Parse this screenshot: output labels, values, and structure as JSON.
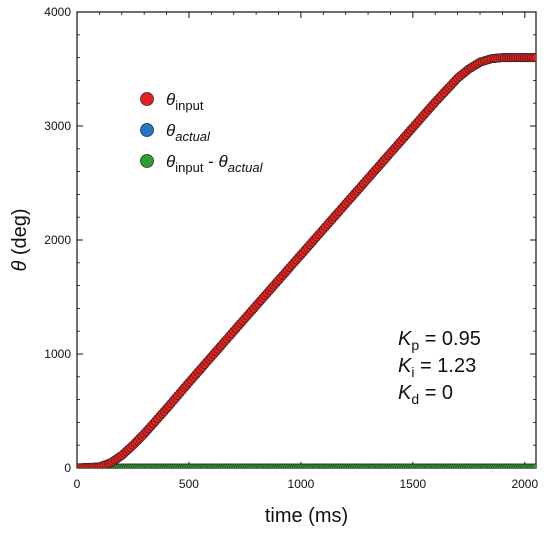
{
  "chart_data": {
    "type": "scatter",
    "title": "",
    "xlabel": "time (ms)",
    "ylabel_symbol": "θ",
    "ylabel_rest": " (deg)",
    "xlim": [
      0,
      2050
    ],
    "ylim": [
      0,
      4000
    ],
    "xticks": [
      "0",
      "500",
      "1000",
      "1500",
      "2000"
    ],
    "yticks": [
      "0",
      "1000",
      "2000",
      "3000",
      "4000"
    ],
    "grid": false,
    "legend_position": "top-left",
    "legend": [
      {
        "symbol": "θ",
        "sub": "input",
        "rest": "",
        "rest_sub": ""
      },
      {
        "symbol": "θ",
        "sub": "actual",
        "rest": "",
        "rest_sub": ""
      },
      {
        "symbol": "θ",
        "sub": "input",
        "rest": " - θ",
        "rest_sub": "actual"
      }
    ],
    "series": [
      {
        "color": "#e8201c",
        "values_description": "θ input",
        "x": [
          0,
          100,
          150,
          200,
          250,
          300,
          400,
          500,
          700,
          1000,
          1300,
          1600,
          1700,
          1750,
          1800,
          1850,
          1900,
          1950,
          2000,
          2050
        ],
        "y": [
          0,
          10,
          45,
          110,
          200,
          300,
          520,
          750,
          1200,
          1870,
          2540,
          3210,
          3420,
          3500,
          3560,
          3590,
          3600,
          3600,
          3600,
          3600
        ]
      },
      {
        "color": "#1f78c8",
        "values_description": "θ actual",
        "x": [
          0,
          100,
          150,
          200,
          250,
          300,
          400,
          500,
          700,
          1000,
          1300,
          1600,
          1700,
          1750,
          1800,
          1850,
          1900,
          1950,
          2000,
          2050
        ],
        "y": [
          0,
          10,
          45,
          110,
          200,
          300,
          520,
          750,
          1200,
          1870,
          2540,
          3210,
          3420,
          3500,
          3560,
          3590,
          3600,
          3600,
          3600,
          3600
        ]
      },
      {
        "color": "#2ca02c",
        "values_description": "difference",
        "x": [
          0,
          2050
        ],
        "y": [
          0,
          0
        ]
      }
    ],
    "colors": {
      "input": "#e8201c",
      "actual": "#1f78c8",
      "diff": "#2ca02c"
    },
    "annotation": [
      {
        "symbol": "K",
        "sub": "p",
        "value": " = 0.95"
      },
      {
        "symbol": "K",
        "sub": "i",
        "value": " = 1.23"
      },
      {
        "symbol": "K",
        "sub": "d",
        "value": " = 0"
      }
    ]
  }
}
